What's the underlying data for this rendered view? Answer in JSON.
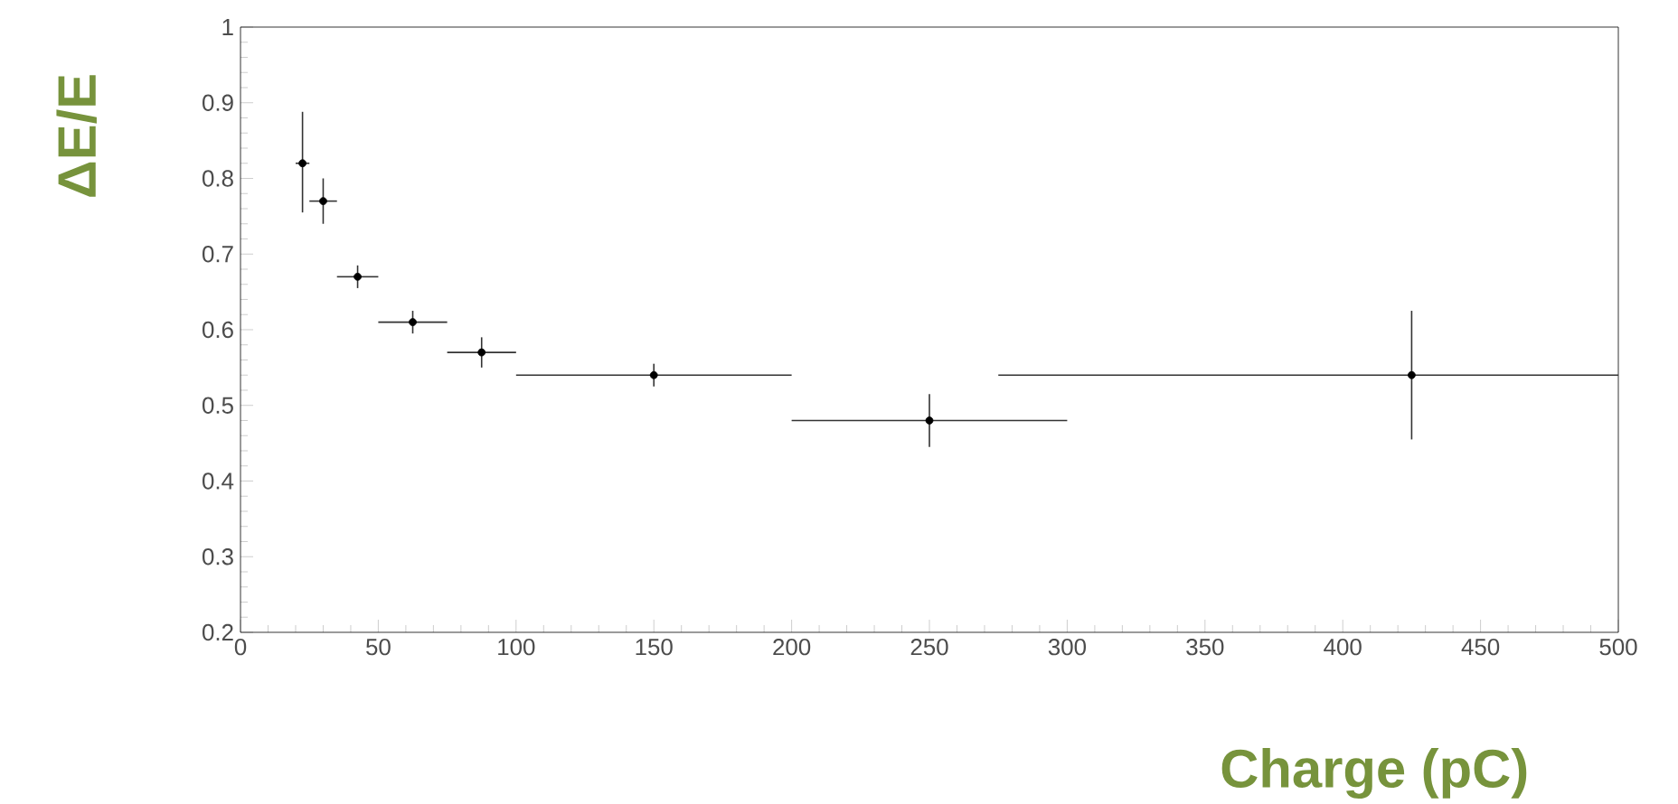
{
  "chart_data": {
    "type": "scatter",
    "xlabel": "Charge (pC)",
    "ylabel": "ΔE/E",
    "x": [
      22.5,
      30,
      42.5,
      62.5,
      87.5,
      150,
      250,
      425
    ],
    "values": [
      0.82,
      0.77,
      0.67,
      0.61,
      0.57,
      0.54,
      0.48,
      0.54
    ],
    "errors": [
      [
        0.755,
        0.888
      ],
      [
        0.74,
        0.8
      ],
      [
        0.655,
        0.685
      ],
      [
        0.595,
        0.625
      ],
      [
        0.55,
        0.59
      ],
      [
        0.525,
        0.555
      ],
      [
        0.445,
        0.515
      ],
      [
        0.455,
        0.625
      ]
    ],
    "xerrors": [
      [
        20,
        25
      ],
      [
        25,
        35
      ],
      [
        35,
        50
      ],
      [
        50,
        75
      ],
      [
        75,
        100
      ],
      [
        100,
        200
      ],
      [
        200,
        300
      ],
      [
        275,
        500
      ]
    ],
    "color": "#000000",
    "marker": "circle",
    "grid": false,
    "xlim": [
      0,
      500
    ],
    "ylim": [
      0.2,
      1
    ],
    "xticks": [
      0,
      50,
      100,
      150,
      200,
      250,
      300,
      350,
      400,
      450,
      500
    ],
    "yticks": [
      0.2,
      0.3,
      0.4,
      0.5,
      0.6,
      0.7,
      0.8,
      0.9,
      1
    ]
  }
}
